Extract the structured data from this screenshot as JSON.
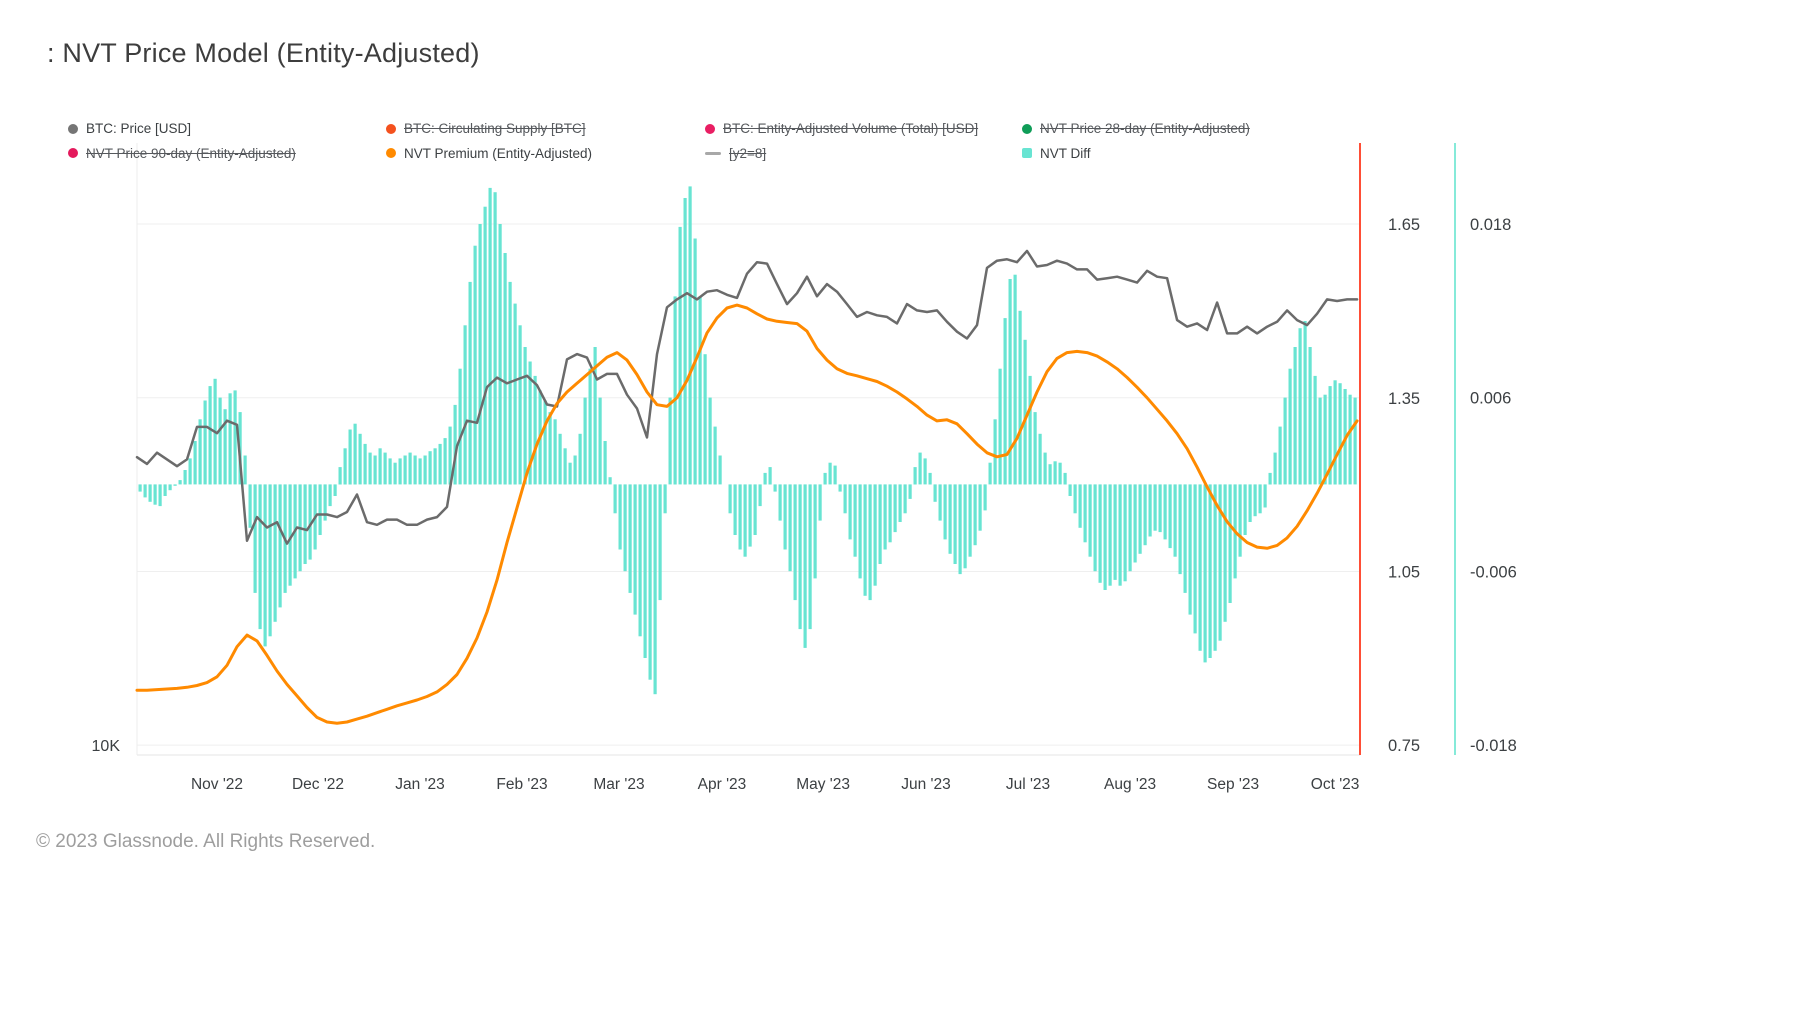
{
  "page": {
    "footer": "© 2023 Glassnode. All Rights Reserved."
  },
  "legend": {
    "items": [
      {
        "id": "btc-price",
        "label": "BTC: Price [USD]",
        "color": "#757575",
        "marker": "dot",
        "disabled": false
      },
      {
        "id": "btc-circulating-supply",
        "label": "BTC: Circulating Supply [BTC]",
        "color": "#f4511e",
        "marker": "dot",
        "disabled": true
      },
      {
        "id": "btc-entity-adjusted-volume",
        "label": "BTC: Entity-Adjusted Volume (Total) [USD]",
        "color": "#e91e63",
        "marker": "dot",
        "disabled": true
      },
      {
        "id": "nvt-price-28-day",
        "label": "NVT Price 28-day (Entity-Adjusted)",
        "color": "#0f9d58",
        "marker": "dot",
        "disabled": true
      },
      {
        "id": "nvt-price-90-day",
        "label": "NVT Price 90-day (Entity-Adjusted)",
        "color": "#e4195c",
        "marker": "dot",
        "disabled": true
      },
      {
        "id": "nvt-premium",
        "label": "NVT Premium (Entity-Adjusted)",
        "color": "#ff8a00",
        "marker": "dot",
        "disabled": false
      },
      {
        "id": "y2-8",
        "label": "[y2=8]",
        "color": "#a8a8a8",
        "marker": "dash",
        "disabled": true
      },
      {
        "id": "nvt-diff",
        "label": "NVT Diff",
        "color": "#68e4d2",
        "marker": "square",
        "disabled": false
      }
    ]
  },
  "chart_data": {
    "type": "mixed",
    "title": ": NVT Price Model (Entity-Adjusted)",
    "x_axis": {
      "ticks": [
        {
          "label": "Nov '22",
          "t": 0.0654
        },
        {
          "label": "Dec '22",
          "t": 0.148
        },
        {
          "label": "Jan '23",
          "t": 0.2314
        },
        {
          "label": "Feb '23",
          "t": 0.3148
        },
        {
          "label": "Mar '23",
          "t": 0.3941
        },
        {
          "label": "Apr '23",
          "t": 0.4783
        },
        {
          "label": "May '23",
          "t": 0.561
        },
        {
          "label": "Jun '23",
          "t": 0.6451
        },
        {
          "label": "Jul '23",
          "t": 0.7285
        },
        {
          "label": "Aug '23",
          "t": 0.812
        },
        {
          "label": "Sep '23",
          "t": 0.8962
        },
        {
          "label": "Oct '23",
          "t": 0.9796
        }
      ]
    },
    "y_axes": {
      "price": {
        "side": "left",
        "scale": "log",
        "unit": "K USD",
        "domain": [
          9.77,
          40.0
        ],
        "ticks": [
          {
            "v": 10,
            "label": "10K"
          }
        ]
      },
      "ratio": {
        "side": "right",
        "scale": "linear",
        "domain": [
          0.733,
          1.79
        ],
        "ticks": [
          {
            "v": 1.65,
            "label": "1.65"
          },
          {
            "v": 1.35,
            "label": "1.35"
          },
          {
            "v": 1.05,
            "label": "1.05"
          },
          {
            "v": 0.75,
            "label": "0.75"
          }
        ]
      },
      "diff": {
        "side": "right-outer",
        "scale": "linear",
        "domain": [
          -0.0187,
          0.0236
        ],
        "ticks": [
          {
            "v": 0.018,
            "label": "0.018"
          },
          {
            "v": 0.006,
            "label": "0.006"
          },
          {
            "v": -0.006,
            "label": "-0.006"
          },
          {
            "v": -0.018,
            "label": "-0.018"
          }
        ]
      }
    },
    "series": [
      {
        "id": "nvt-diff",
        "name": "NVT Diff",
        "type": "bar",
        "axis": "diff",
        "color": "#68e4d2",
        "t0": 0.0025,
        "t1": 0.996,
        "values": [
          -0.0005,
          -0.0009,
          -0.0012,
          -0.0014,
          -0.0015,
          -0.0008,
          -0.0004,
          -0.0001,
          0.0003,
          0.001,
          0.0018,
          0.003,
          0.0045,
          0.0058,
          0.0068,
          0.0073,
          0.006,
          0.0052,
          0.0063,
          0.0065,
          0.005,
          0.002,
          -0.003,
          -0.0075,
          -0.01,
          -0.0112,
          -0.0105,
          -0.0095,
          -0.0085,
          -0.0075,
          -0.007,
          -0.0065,
          -0.006,
          -0.0055,
          -0.0052,
          -0.0045,
          -0.0035,
          -0.0025,
          -0.0015,
          -0.0008,
          0.0012,
          0.0025,
          0.0038,
          0.0042,
          0.0035,
          0.0028,
          0.0022,
          0.002,
          0.0025,
          0.0022,
          0.0018,
          0.0015,
          0.0018,
          0.002,
          0.0022,
          0.002,
          0.0018,
          0.002,
          0.0023,
          0.0025,
          0.0028,
          0.0032,
          0.004,
          0.0055,
          0.008,
          0.011,
          0.014,
          0.0165,
          0.018,
          0.0192,
          0.0205,
          0.0202,
          0.018,
          0.016,
          0.014,
          0.0125,
          0.011,
          0.0095,
          0.0085,
          0.0075,
          0.0065,
          0.0058,
          0.005,
          0.0045,
          0.0035,
          0.0025,
          0.0015,
          0.002,
          0.0035,
          0.006,
          0.008,
          0.0095,
          0.006,
          0.003,
          0.0005,
          -0.002,
          -0.0045,
          -0.006,
          -0.0075,
          -0.009,
          -0.0105,
          -0.012,
          -0.0135,
          -0.0145,
          -0.008,
          -0.002,
          0.006,
          0.013,
          0.0178,
          0.0198,
          0.0206,
          0.017,
          0.013,
          0.009,
          0.006,
          0.004,
          0.002,
          0.0,
          -0.002,
          -0.0035,
          -0.0045,
          -0.005,
          -0.0043,
          -0.0035,
          -0.0015,
          0.0008,
          0.0012,
          -0.0005,
          -0.0025,
          -0.0045,
          -0.006,
          -0.008,
          -0.01,
          -0.0113,
          -0.01,
          -0.0065,
          -0.0025,
          0.0008,
          0.0015,
          0.0013,
          -0.0005,
          -0.002,
          -0.0038,
          -0.005,
          -0.0065,
          -0.0077,
          -0.008,
          -0.007,
          -0.0055,
          -0.0045,
          -0.004,
          -0.0033,
          -0.0026,
          -0.002,
          -0.001,
          0.0012,
          0.0022,
          0.0018,
          0.0008,
          -0.0012,
          -0.0025,
          -0.0038,
          -0.0048,
          -0.0055,
          -0.0062,
          -0.0058,
          -0.005,
          -0.0042,
          -0.0032,
          -0.0018,
          0.0015,
          0.0045,
          0.008,
          0.0115,
          0.0142,
          0.0145,
          0.012,
          0.01,
          0.0075,
          0.005,
          0.0035,
          0.0022,
          0.0014,
          0.0016,
          0.0015,
          0.0008,
          -0.0008,
          -0.002,
          -0.003,
          -0.004,
          -0.005,
          -0.006,
          -0.0068,
          -0.0073,
          -0.007,
          -0.0066,
          -0.007,
          -0.0067,
          -0.006,
          -0.0054,
          -0.0048,
          -0.0042,
          -0.0036,
          -0.0032,
          -0.0033,
          -0.0038,
          -0.0044,
          -0.005,
          -0.0062,
          -0.0075,
          -0.009,
          -0.0103,
          -0.0115,
          -0.0123,
          -0.012,
          -0.0115,
          -0.0108,
          -0.0095,
          -0.0082,
          -0.0065,
          -0.005,
          -0.0035,
          -0.0026,
          -0.0022,
          -0.002,
          -0.0016,
          0.0008,
          0.0022,
          0.004,
          0.006,
          0.008,
          0.0095,
          0.0108,
          0.0113,
          0.0095,
          0.0075,
          0.006,
          0.0062,
          0.0068,
          0.0072,
          0.007,
          0.0066,
          0.0062,
          0.006
        ]
      },
      {
        "id": "btc-price",
        "name": "BTC: Price [USD]",
        "type": "line",
        "axis": "price",
        "color": "#6b6b6b",
        "width": 2.5,
        "t0": 0.0,
        "t1": 0.9976,
        "values": [
          19.4,
          19.1,
          19.6,
          19.3,
          19.0,
          19.3,
          20.8,
          20.8,
          20.5,
          21.1,
          20.9,
          16.0,
          16.9,
          16.5,
          16.7,
          15.9,
          16.5,
          16.4,
          17.0,
          17.0,
          16.9,
          17.1,
          17.8,
          16.7,
          16.6,
          16.8,
          16.8,
          16.6,
          16.6,
          16.8,
          16.9,
          17.3,
          19.9,
          21.1,
          21.0,
          22.8,
          23.3,
          23.0,
          23.2,
          23.4,
          22.9,
          21.9,
          21.8,
          24.3,
          24.6,
          24.4,
          23.2,
          23.5,
          23.5,
          22.4,
          21.7,
          20.3,
          24.6,
          27.4,
          27.9,
          28.3,
          27.9,
          28.4,
          28.5,
          28.2,
          28.0,
          29.6,
          30.4,
          30.3,
          28.9,
          27.6,
          28.3,
          29.4,
          28.1,
          28.9,
          28.4,
          27.6,
          26.8,
          27.1,
          26.9,
          26.8,
          26.4,
          27.6,
          27.2,
          27.1,
          27.2,
          26.5,
          25.9,
          25.5,
          26.3,
          30.0,
          30.5,
          30.6,
          30.4,
          31.2,
          30.1,
          30.2,
          30.5,
          30.3,
          29.9,
          29.9,
          29.2,
          29.3,
          29.4,
          29.2,
          29.0,
          29.8,
          29.4,
          29.3,
          26.6,
          26.2,
          26.4,
          26.0,
          27.7,
          25.8,
          25.8,
          26.2,
          25.8,
          26.2,
          26.5,
          27.2,
          26.6,
          26.3,
          27.0,
          27.9,
          27.8,
          27.9,
          27.9
        ]
      },
      {
        "id": "nvt-premium",
        "name": "NVT Premium (Entity-Adjusted)",
        "type": "line",
        "axis": "ratio",
        "color": "#ff8a00",
        "width": 3,
        "t0": 0.0,
        "t1": 0.9976,
        "values": [
          0.845,
          0.845,
          0.846,
          0.847,
          0.848,
          0.85,
          0.853,
          0.858,
          0.868,
          0.888,
          0.92,
          0.94,
          0.93,
          0.905,
          0.878,
          0.855,
          0.835,
          0.815,
          0.798,
          0.79,
          0.788,
          0.79,
          0.795,
          0.8,
          0.806,
          0.812,
          0.818,
          0.823,
          0.828,
          0.834,
          0.842,
          0.855,
          0.872,
          0.9,
          0.935,
          0.98,
          1.035,
          1.1,
          1.16,
          1.22,
          1.27,
          1.31,
          1.34,
          1.36,
          1.375,
          1.39,
          1.405,
          1.42,
          1.428,
          1.415,
          1.39,
          1.36,
          1.338,
          1.335,
          1.35,
          1.38,
          1.42,
          1.462,
          1.488,
          1.505,
          1.51,
          1.505,
          1.495,
          1.486,
          1.482,
          1.48,
          1.478,
          1.465,
          1.435,
          1.415,
          1.4,
          1.392,
          1.388,
          1.383,
          1.378,
          1.37,
          1.36,
          1.348,
          1.335,
          1.32,
          1.31,
          1.312,
          1.305,
          1.288,
          1.27,
          1.255,
          1.248,
          1.252,
          1.28,
          1.32,
          1.36,
          1.395,
          1.418,
          1.428,
          1.43,
          1.428,
          1.422,
          1.412,
          1.4,
          1.385,
          1.368,
          1.35,
          1.33,
          1.31,
          1.288,
          1.262,
          1.23,
          1.196,
          1.164,
          1.136,
          1.115,
          1.1,
          1.092,
          1.09,
          1.095,
          1.108,
          1.128,
          1.155,
          1.185,
          1.218,
          1.252,
          1.285,
          1.31
        ]
      }
    ],
    "annotations": {
      "right_border_color": "#ff4e36",
      "diff_axis_line_color": "#86ead9",
      "grid_color": "#efefef"
    }
  }
}
